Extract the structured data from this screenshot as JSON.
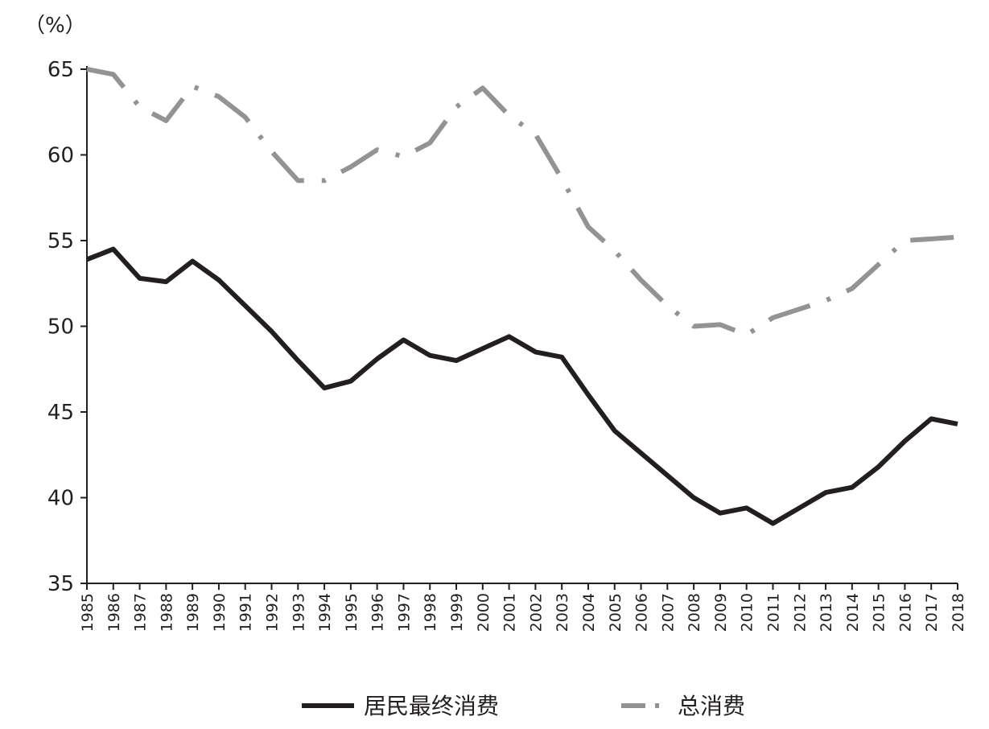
{
  "chart_data": {
    "type": "line",
    "unit_label": "（%）",
    "ylim": [
      35,
      65
    ],
    "y_ticks": [
      35,
      40,
      45,
      50,
      55,
      60,
      65
    ],
    "grid": false,
    "legend_position": "bottom-center",
    "x": [
      "1985",
      "1986",
      "1987",
      "1988",
      "1989",
      "1990",
      "1991",
      "1992",
      "1993",
      "1994",
      "1995",
      "1996",
      "1997",
      "1998",
      "1999",
      "2000",
      "2001",
      "2002",
      "2003",
      "2004",
      "2005",
      "2006",
      "2007",
      "2008",
      "2009",
      "2010",
      "2011",
      "2012",
      "2013",
      "2014",
      "2015",
      "2016",
      "2017",
      "2018"
    ],
    "series": [
      {
        "name": "居民最终消费",
        "color": "#231f20",
        "style": "solid",
        "values": [
          53.9,
          54.5,
          52.8,
          52.6,
          53.8,
          52.7,
          51.2,
          49.7,
          48.0,
          46.4,
          46.8,
          48.1,
          49.2,
          48.3,
          48.0,
          48.7,
          49.4,
          48.5,
          48.2,
          46.0,
          43.9,
          42.6,
          41.3,
          40.0,
          39.1,
          39.4,
          38.5,
          39.4,
          40.3,
          40.6,
          41.8,
          43.3,
          44.6,
          44.3
        ]
      },
      {
        "name": "总消费",
        "color": "#939393",
        "style": "dash-dot",
        "values": [
          65.0,
          64.7,
          62.8,
          62.0,
          64.0,
          63.4,
          62.2,
          60.2,
          58.5,
          58.5,
          59.3,
          60.3,
          59.9,
          60.7,
          62.8,
          63.9,
          62.3,
          61.2,
          58.6,
          55.8,
          54.4,
          52.7,
          51.2,
          50.0,
          50.1,
          49.5,
          50.5,
          51.0,
          51.5,
          52.2,
          53.6,
          55.0,
          55.1,
          55.2
        ]
      }
    ]
  }
}
